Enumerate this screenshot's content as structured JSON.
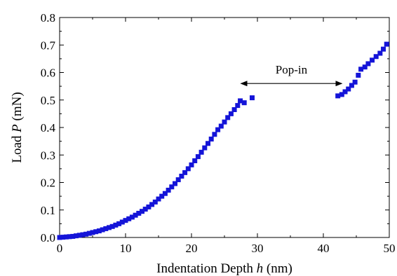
{
  "chart_data": {
    "type": "scatter",
    "xlabel": {
      "prefix": "Indentation Depth ",
      "var": "h",
      "suffix": " (nm)"
    },
    "ylabel": {
      "prefix": "Load ",
      "var": "P",
      "suffix": " (mN)"
    },
    "xlim": [
      0,
      50
    ],
    "ylim": [
      0,
      0.8
    ],
    "xticks": [
      "0",
      "10",
      "20",
      "30",
      "40",
      "50"
    ],
    "yticks": [
      "0.0",
      "0.1",
      "0.2",
      "0.3",
      "0.4",
      "0.5",
      "0.6",
      "0.7",
      "0.8"
    ],
    "grid": false,
    "legend": "none",
    "marker_color": "#1414d8",
    "annotation": {
      "text": "Pop-in",
      "x_start": 27.5,
      "x_end": 42.8,
      "y": 0.56
    },
    "series": [
      {
        "points": [
          [
            0.0,
            0.0
          ],
          [
            0.5,
            0.001
          ],
          [
            1.0,
            0.002
          ],
          [
            1.5,
            0.003
          ],
          [
            2.0,
            0.004
          ],
          [
            2.5,
            0.006
          ],
          [
            3.0,
            0.008
          ],
          [
            3.5,
            0.01
          ],
          [
            4.0,
            0.012
          ],
          [
            4.5,
            0.015
          ],
          [
            5.0,
            0.018
          ],
          [
            5.5,
            0.021
          ],
          [
            6.0,
            0.024
          ],
          [
            6.5,
            0.028
          ],
          [
            7.0,
            0.032
          ],
          [
            7.5,
            0.036
          ],
          [
            8.0,
            0.04
          ],
          [
            8.5,
            0.045
          ],
          [
            9.0,
            0.05
          ],
          [
            9.5,
            0.056
          ],
          [
            10.0,
            0.062
          ],
          [
            10.5,
            0.068
          ],
          [
            11.0,
            0.074
          ],
          [
            11.5,
            0.081
          ],
          [
            12.0,
            0.088
          ],
          [
            12.5,
            0.095
          ],
          [
            13.0,
            0.103
          ],
          [
            13.5,
            0.111
          ],
          [
            14.0,
            0.12
          ],
          [
            14.5,
            0.129
          ],
          [
            15.0,
            0.14
          ],
          [
            15.5,
            0.15
          ],
          [
            16.0,
            0.16
          ],
          [
            16.5,
            0.172
          ],
          [
            17.0,
            0.184
          ],
          [
            17.5,
            0.196
          ],
          [
            18.0,
            0.21
          ],
          [
            18.5,
            0.223
          ],
          [
            19.0,
            0.236
          ],
          [
            19.5,
            0.25
          ],
          [
            20.0,
            0.264
          ],
          [
            20.5,
            0.279
          ],
          [
            21.0,
            0.294
          ],
          [
            21.5,
            0.31
          ],
          [
            22.0,
            0.326
          ],
          [
            22.5,
            0.342
          ],
          [
            23.0,
            0.358
          ],
          [
            23.5,
            0.375
          ],
          [
            24.0,
            0.392
          ],
          [
            24.5,
            0.405
          ],
          [
            25.0,
            0.42
          ],
          [
            25.5,
            0.436
          ],
          [
            26.0,
            0.45
          ],
          [
            26.5,
            0.465
          ],
          [
            27.0,
            0.48
          ],
          [
            27.4,
            0.497
          ],
          [
            28.0,
            0.49
          ],
          [
            29.2,
            0.508
          ],
          [
            42.2,
            0.515
          ],
          [
            42.8,
            0.52
          ],
          [
            43.3,
            0.53
          ],
          [
            43.8,
            0.54
          ],
          [
            44.3,
            0.553
          ],
          [
            44.8,
            0.565
          ],
          [
            45.3,
            0.59
          ],
          [
            45.7,
            0.612
          ],
          [
            46.3,
            0.62
          ],
          [
            46.8,
            0.632
          ],
          [
            47.4,
            0.645
          ],
          [
            48.0,
            0.658
          ],
          [
            48.6,
            0.67
          ],
          [
            49.1,
            0.685
          ],
          [
            49.6,
            0.703
          ]
        ]
      }
    ]
  }
}
